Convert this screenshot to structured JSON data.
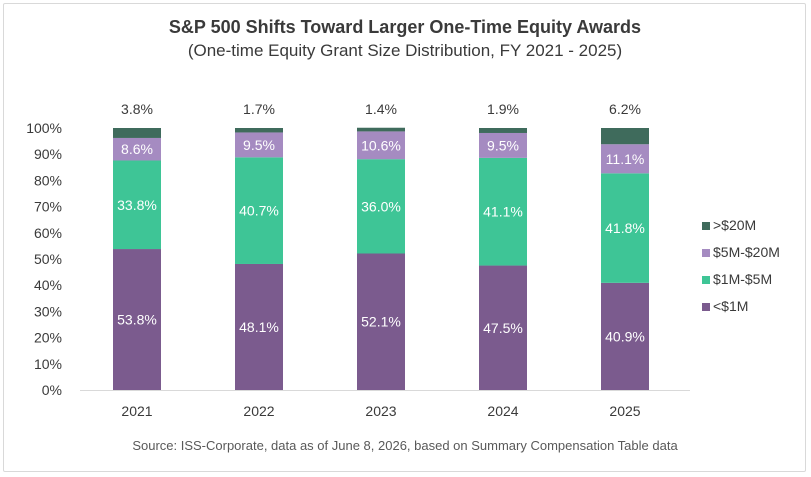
{
  "chart_data": {
    "type": "bar",
    "stacked": true,
    "title": "S&P 500 Shifts Toward Larger One-Time Equity Awards",
    "subtitle": "(One-time Equity Grant Size Distribution, FY 2021 - 2025)",
    "categories": [
      "2021",
      "2022",
      "2023",
      "2024",
      "2025"
    ],
    "y_ticks": [
      "0%",
      "10%",
      "20%",
      "30%",
      "40%",
      "50%",
      "60%",
      "70%",
      "80%",
      "90%",
      "100%"
    ],
    "ylim": [
      0,
      100
    ],
    "grid": false,
    "legend_position": "right",
    "series": [
      {
        "name": "<$1M",
        "color": "#7b5b8e",
        "values": [
          53.8,
          48.1,
          52.1,
          47.5,
          40.9
        ],
        "labels": [
          "53.8%",
          "48.1%",
          "52.1%",
          "47.5%",
          "40.9%"
        ]
      },
      {
        "name": "$1M-$5M",
        "color": "#3ec596",
        "values": [
          33.8,
          40.7,
          36.0,
          41.1,
          41.8
        ],
        "labels": [
          "33.8%",
          "40.7%",
          "36.0%",
          "41.1%",
          "41.8%"
        ]
      },
      {
        "name": "$5M-$20M",
        "color": "#a58bc1",
        "values": [
          8.6,
          9.5,
          10.6,
          9.5,
          11.1
        ],
        "labels": [
          "8.6%",
          "9.5%",
          "10.6%",
          "9.5%",
          "11.1%"
        ]
      },
      {
        "name": ">$20M",
        "color": "#3f6b5c",
        "values": [
          3.8,
          1.7,
          1.4,
          1.9,
          6.2
        ],
        "labels": [
          "3.8%",
          "1.7%",
          "1.4%",
          "1.9%",
          "6.2%"
        ]
      }
    ],
    "source": "Source: ISS-Corporate, data as of June 8, 2026, based on Summary Compensation Table data"
  }
}
